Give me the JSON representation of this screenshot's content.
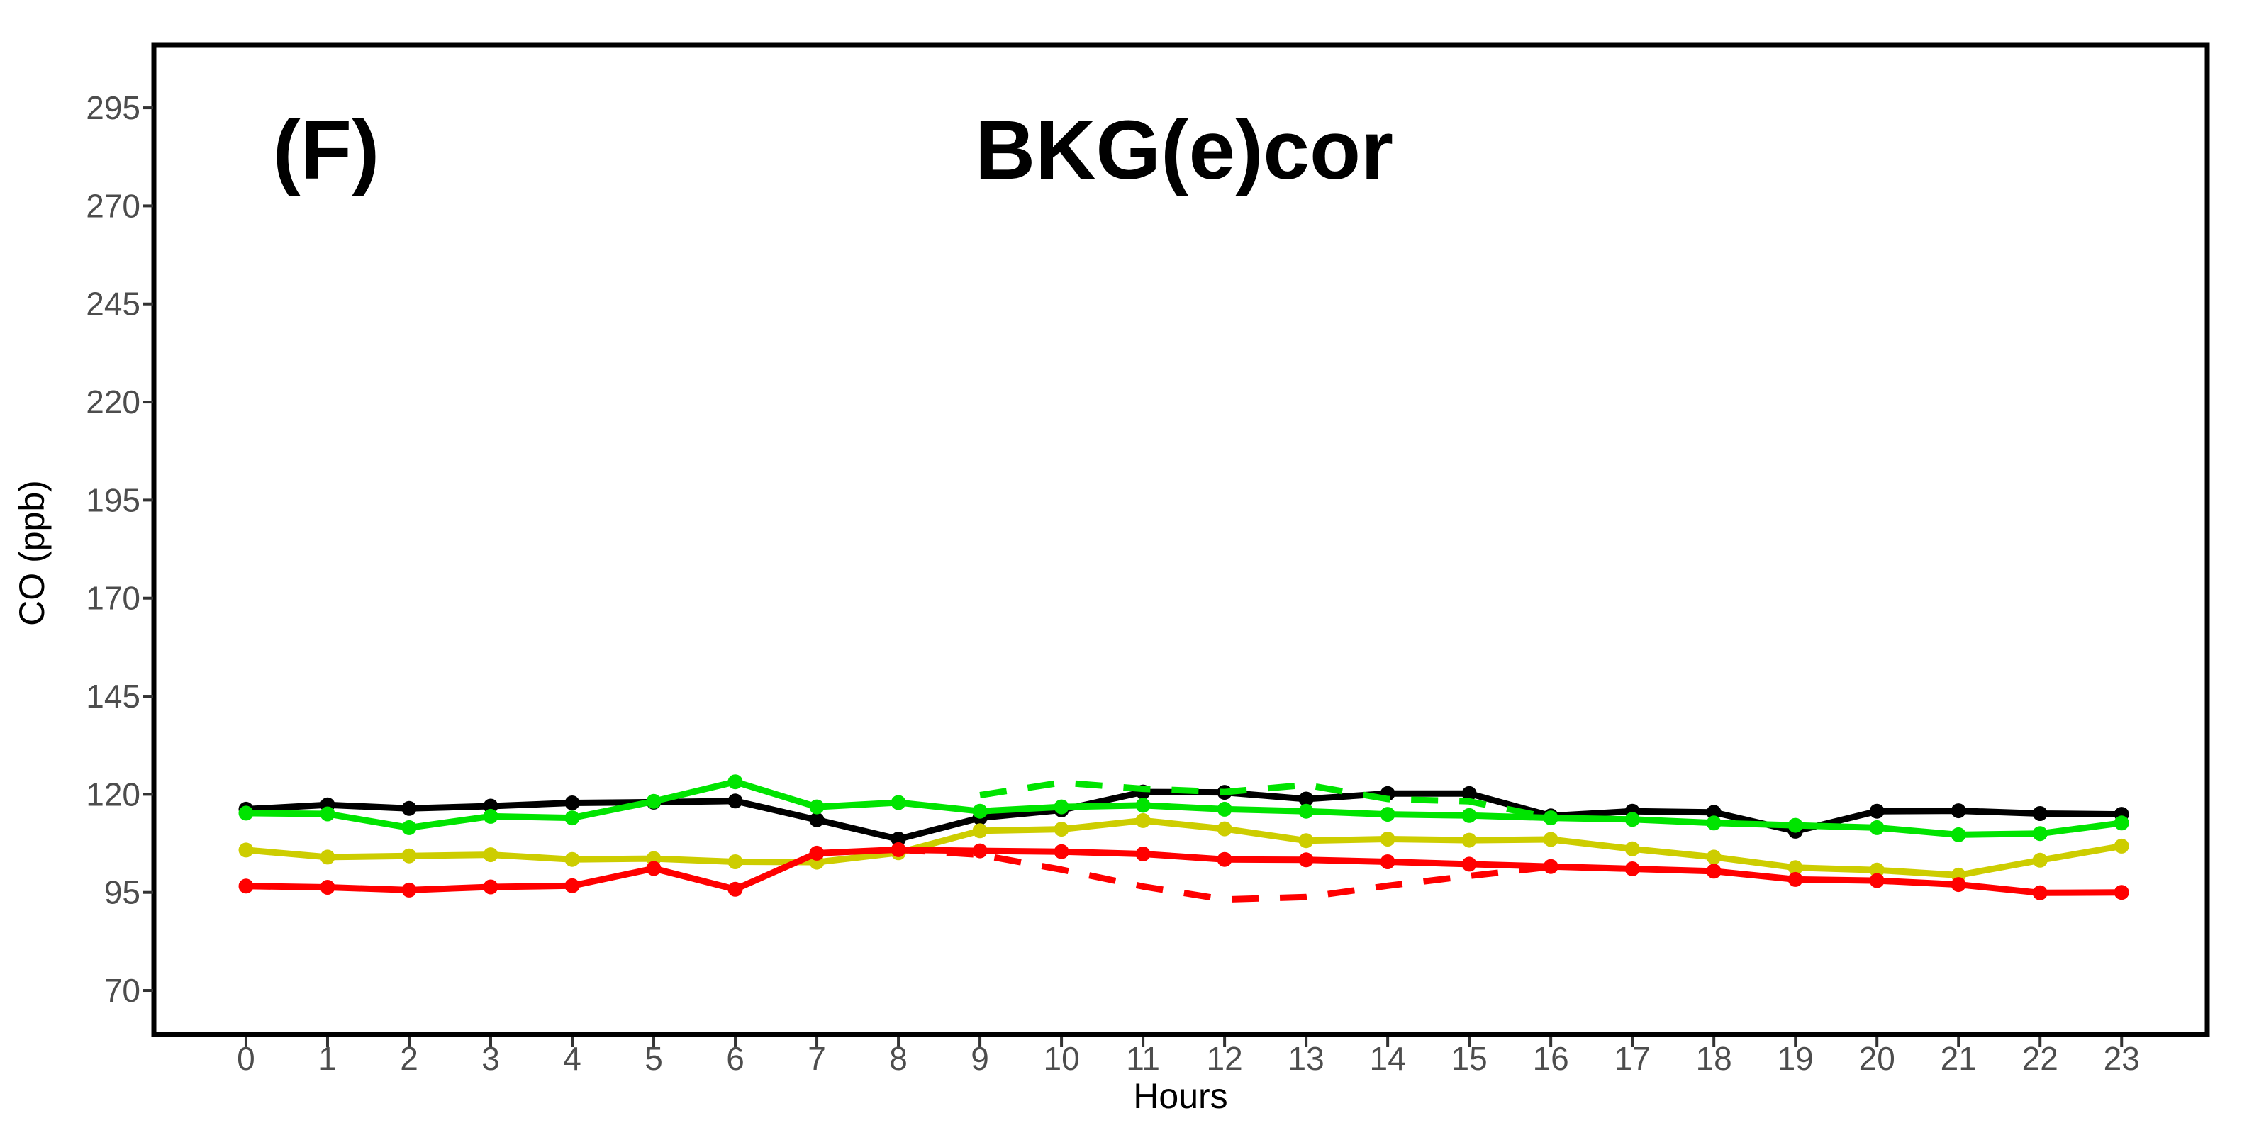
{
  "figure": {
    "panel_label": "(F)",
    "title": "BKG(e)cor",
    "xlabel": "Hours",
    "ylabel": "CO (ppb)"
  },
  "chart_data": {
    "type": "line",
    "title": "BKG(e)cor",
    "panel_label": "(F)",
    "xlabel": "Hours",
    "ylabel": "CO (ppb)",
    "x_ticks": [
      0,
      1,
      2,
      3,
      4,
      5,
      6,
      7,
      8,
      9,
      10,
      11,
      12,
      13,
      14,
      15,
      16,
      17,
      18,
      19,
      20,
      21,
      22,
      23
    ],
    "y_ticks": [
      70,
      95,
      120,
      145,
      170,
      195,
      220,
      245,
      270,
      295
    ],
    "xlim": [
      -1.13,
      24.05
    ],
    "ylim": [
      58.8,
      311.1
    ],
    "grid": false,
    "legend": "none",
    "unit": "ppb",
    "series": [
      {
        "name": "black-solid",
        "color": "#000000",
        "style": "solid",
        "markers": true,
        "x": [
          0,
          1,
          2,
          3,
          4,
          5,
          6,
          7,
          8,
          9,
          10,
          11,
          12,
          13,
          14,
          15,
          16,
          17,
          18,
          19,
          20,
          21,
          22,
          23
        ],
        "values": [
          116.2,
          117.3,
          116.4,
          117.0,
          117.8,
          118.0,
          118.3,
          113.5,
          108.6,
          114.0,
          116.0,
          120.6,
          120.5,
          118.8,
          120.2,
          120.2,
          114.5,
          115.7,
          115.4,
          110.6,
          115.7,
          115.8,
          115.1,
          114.9
        ]
      },
      {
        "name": "green-solid",
        "color": "#00E400",
        "style": "solid",
        "markers": true,
        "x": [
          0,
          1,
          2,
          3,
          4,
          5,
          6,
          7,
          8,
          9,
          10,
          11,
          12,
          13,
          14,
          15,
          16,
          17,
          18,
          19,
          20,
          21,
          22,
          23
        ],
        "values": [
          115.2,
          115.0,
          111.5,
          114.4,
          114.0,
          118.2,
          123.2,
          116.8,
          117.9,
          115.7,
          116.8,
          117.2,
          116.2,
          115.7,
          114.9,
          114.6,
          114.0,
          113.6,
          112.7,
          112.1,
          111.5,
          109.7,
          110.0,
          112.7
        ]
      },
      {
        "name": "yellow-solid",
        "color": "#CDCD00",
        "style": "solid",
        "markers": true,
        "x": [
          0,
          1,
          2,
          3,
          4,
          5,
          6,
          7,
          8,
          9,
          10,
          11,
          12,
          13,
          14,
          15,
          16,
          17,
          18,
          19,
          20,
          21,
          22,
          23
        ],
        "values": [
          105.8,
          104.0,
          104.3,
          104.6,
          103.4,
          103.6,
          102.8,
          102.7,
          105.1,
          110.7,
          111.1,
          113.3,
          111.2,
          108.2,
          108.6,
          108.3,
          108.5,
          106.1,
          104.0,
          101.3,
          100.7,
          99.4,
          103.2,
          106.8
        ]
      },
      {
        "name": "red-solid",
        "color": "#FF0000",
        "style": "solid",
        "markers": true,
        "x": [
          0,
          1,
          2,
          3,
          4,
          5,
          6,
          7,
          8,
          9,
          10,
          11,
          12,
          13,
          14,
          15,
          16,
          17,
          18,
          19,
          20,
          21,
          22,
          23
        ],
        "values": [
          96.6,
          96.3,
          95.6,
          96.4,
          96.7,
          101.1,
          95.8,
          105.0,
          105.9,
          105.6,
          105.4,
          104.8,
          103.4,
          103.3,
          102.8,
          102.2,
          101.6,
          101.0,
          100.4,
          98.3,
          98.0,
          97.0,
          94.9,
          95.0
        ]
      },
      {
        "name": "green-dashed",
        "color": "#00E400",
        "style": "dashed",
        "markers": false,
        "x": [
          9,
          10,
          11,
          12,
          13,
          14,
          15,
          16
        ],
        "values": [
          119.8,
          123.0,
          121.4,
          120.6,
          122.4,
          118.8,
          118.2,
          114.0
        ]
      },
      {
        "name": "red-dashed",
        "color": "#FF0000",
        "style": "dashed",
        "markers": false,
        "x": [
          8,
          9,
          10,
          11,
          12,
          13,
          14,
          15,
          16
        ],
        "values": [
          105.9,
          104.6,
          100.8,
          96.5,
          93.2,
          93.8,
          96.7,
          99.2,
          101.5
        ]
      }
    ]
  },
  "colors": {
    "background": "#FFFFFF",
    "panel_border": "#000000",
    "tick_text": "#4D4D4D",
    "axis_text": "#000000"
  }
}
